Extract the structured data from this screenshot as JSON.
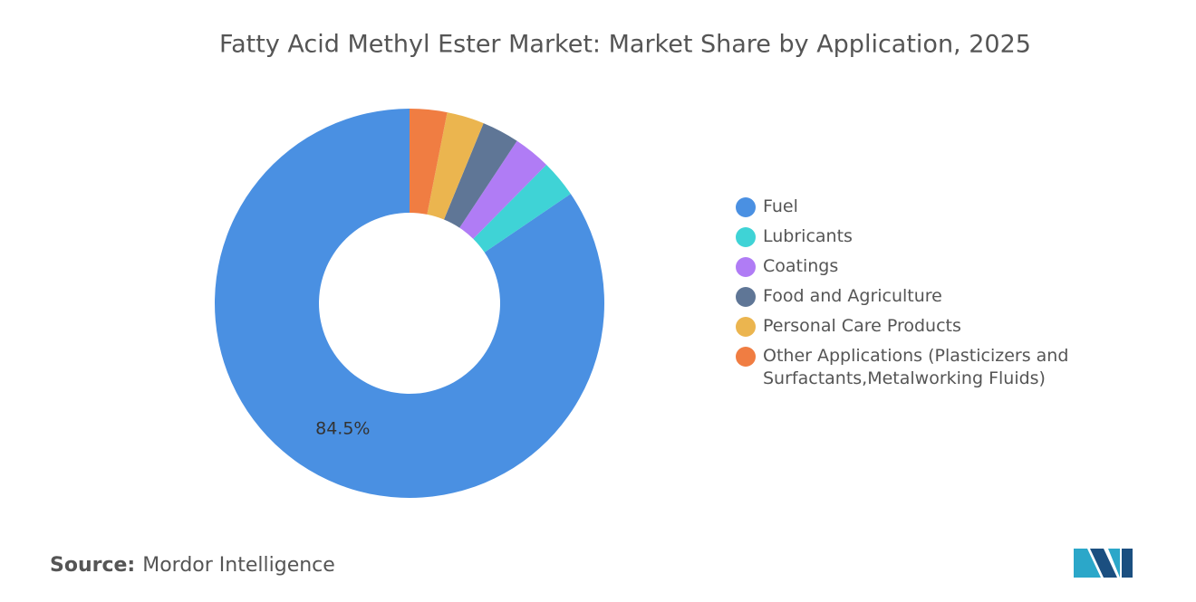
{
  "chart_data": {
    "type": "donut",
    "title": "Fatty Acid Methyl Ester Market: Market Share by Application, 2025",
    "categories": [
      "Fuel",
      "Lubricants",
      "Coatings",
      "Food and Agriculture",
      "Personal Care Products",
      "Other Applications (Plasticizers and Surfactants,Metalworking Fluids)"
    ],
    "values": [
      84.5,
      3.1,
      3.1,
      3.1,
      3.1,
      3.1
    ],
    "value_labels": [
      "84.5%",
      null,
      null,
      null,
      null,
      null
    ],
    "colors": [
      "#4a90e2",
      "#3fd3d6",
      "#b07cf5",
      "#5f7696",
      "#ebb54f",
      "#f07d42"
    ],
    "legend": "right"
  },
  "source": {
    "label": "Source:",
    "text": "Mordor Intelligence"
  }
}
